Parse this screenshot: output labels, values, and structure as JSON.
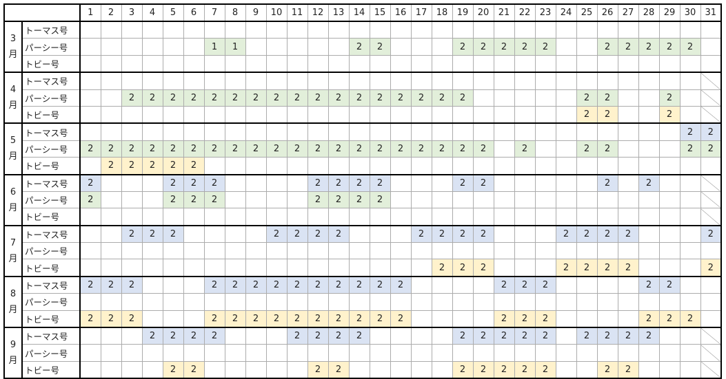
{
  "days": [
    "1",
    "2",
    "3",
    "4",
    "5",
    "6",
    "7",
    "8",
    "9",
    "10",
    "11",
    "12",
    "13",
    "14",
    "15",
    "16",
    "17",
    "18",
    "19",
    "20",
    "21",
    "22",
    "23",
    "24",
    "25",
    "26",
    "27",
    "28",
    "29",
    "30",
    "31"
  ],
  "train_colors": {
    "トーマス号": "#dae3f3",
    "パーシー号": "#e2efda",
    "トビー号": "#fff2cc"
  },
  "months": [
    {
      "label": "3\n月",
      "day31_unavailable": false,
      "rows": [
        {
          "name": "トーマス号",
          "cells": {}
        },
        {
          "name": "パーシー号",
          "cells": {
            "7": "1",
            "8": "1",
            "14": "2",
            "15": "2",
            "19": "2",
            "20": "2",
            "21": "2",
            "22": "2",
            "23": "2",
            "26": "2",
            "27": "2",
            "28": "2",
            "29": "2",
            "30": "2"
          }
        },
        {
          "name": "トビー号",
          "cells": {}
        }
      ]
    },
    {
      "label": "4\n月",
      "day31_unavailable": true,
      "rows": [
        {
          "name": "トーマス号",
          "cells": {}
        },
        {
          "name": "パーシー号",
          "cells": {
            "3": "2",
            "4": "2",
            "5": "2",
            "6": "2",
            "7": "2",
            "8": "2",
            "9": "2",
            "10": "2",
            "11": "2",
            "12": "2",
            "13": "2",
            "14": "2",
            "15": "2",
            "16": "2",
            "17": "2",
            "18": "2",
            "19": "2",
            "25": "2",
            "26": "2",
            "29": "2"
          }
        },
        {
          "name": "トビー号",
          "cells": {
            "25": "2",
            "26": "2",
            "29": "2"
          }
        }
      ]
    },
    {
      "label": "5\n月",
      "day31_unavailable": false,
      "rows": [
        {
          "name": "トーマス号",
          "cells": {
            "30": "2",
            "31": "2"
          }
        },
        {
          "name": "パーシー号",
          "cells": {
            "1": "2",
            "2": "2",
            "3": "2",
            "4": "2",
            "5": "2",
            "6": "2",
            "7": "2",
            "8": "2",
            "9": "2",
            "10": "2",
            "11": "2",
            "12": "2",
            "13": "2",
            "14": "2",
            "15": "2",
            "16": "2",
            "17": "2",
            "18": "2",
            "19": "2",
            "20": "2",
            "22": "2",
            "25": "2",
            "26": "2",
            "30": "2",
            "31": "2"
          }
        },
        {
          "name": "トビー号",
          "cells": {
            "2": "2",
            "3": "2",
            "4": "2",
            "5": "2",
            "6": "2"
          }
        }
      ]
    },
    {
      "label": "6\n月",
      "day31_unavailable": true,
      "rows": [
        {
          "name": "トーマス号",
          "cells": {
            "1": "2",
            "5": "2",
            "6": "2",
            "7": "2",
            "12": "2",
            "13": "2",
            "14": "2",
            "15": "2",
            "19": "2",
            "20": "2",
            "26": "2",
            "28": "2"
          }
        },
        {
          "name": "パーシー号",
          "cells": {
            "1": "2",
            "5": "2",
            "6": "2",
            "7": "2",
            "12": "2",
            "13": "2",
            "14": "2",
            "15": "2"
          }
        },
        {
          "name": "トビー号",
          "cells": {}
        }
      ]
    },
    {
      "label": "7\n月",
      "day31_unavailable": false,
      "rows": [
        {
          "name": "トーマス号",
          "cells": {
            "3": "2",
            "4": "2",
            "5": "2",
            "10": "2",
            "11": "2",
            "12": "2",
            "13": "2",
            "17": "2",
            "18": "2",
            "19": "2",
            "20": "2",
            "24": "2",
            "25": "2",
            "26": "2",
            "27": "2",
            "31": "2"
          }
        },
        {
          "name": "パーシー号",
          "cells": {}
        },
        {
          "name": "トビー号",
          "cells": {
            "18": "2",
            "19": "2",
            "20": "2",
            "24": "2",
            "25": "2",
            "26": "2",
            "27": "2",
            "31": "2"
          }
        }
      ]
    },
    {
      "label": "8\n月",
      "day31_unavailable": false,
      "rows": [
        {
          "name": "トーマス号",
          "cells": {
            "1": "2",
            "2": "2",
            "3": "2",
            "7": "2",
            "8": "2",
            "9": "2",
            "10": "2",
            "11": "2",
            "12": "2",
            "13": "2",
            "14": "2",
            "15": "2",
            "16": "2",
            "21": "2",
            "22": "2",
            "23": "2",
            "28": "2",
            "29": "2"
          }
        },
        {
          "name": "パーシー号",
          "cells": {}
        },
        {
          "name": "トビー号",
          "cells": {
            "1": "2",
            "2": "2",
            "3": "2",
            "7": "2",
            "8": "2",
            "9": "2",
            "10": "2",
            "11": "2",
            "12": "2",
            "13": "2",
            "14": "2",
            "15": "2",
            "16": "2",
            "21": "2",
            "22": "2",
            "23": "2",
            "28": "2",
            "29": "2",
            "30": "2"
          }
        }
      ]
    },
    {
      "label": "9\n月",
      "day31_unavailable": true,
      "rows": [
        {
          "name": "トーマス号",
          "cells": {
            "4": "2",
            "5": "2",
            "6": "2",
            "7": "2",
            "11": "2",
            "12": "2",
            "13": "2",
            "14": "2",
            "19": "2",
            "20": "2",
            "21": "2",
            "22": "2",
            "23": "2",
            "25": "2",
            "26": "2",
            "27": "2",
            "28": "2"
          }
        },
        {
          "name": "パーシー号",
          "cells": {}
        },
        {
          "name": "トビー号",
          "cells": {
            "5": "2",
            "6": "2",
            "12": "2",
            "13": "2",
            "19": "2",
            "20": "2",
            "21": "2",
            "22": "2",
            "23": "2",
            "26": "2",
            "27": "2"
          }
        }
      ]
    }
  ]
}
